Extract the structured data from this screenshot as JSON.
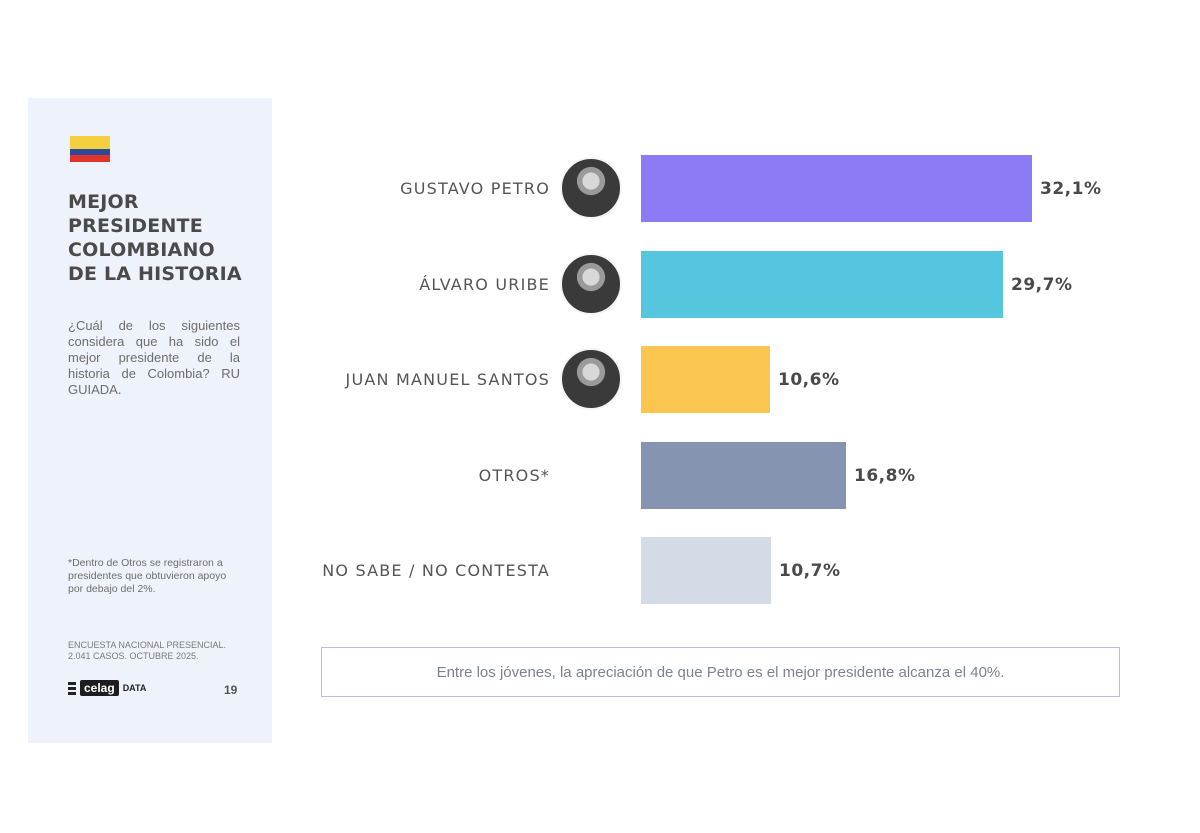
{
  "sidebar": {
    "title_lines": [
      "MEJOR",
      "PRESIDENTE",
      "COLOMBIANO",
      "DE LA HISTORIA"
    ],
    "question": "¿Cuál de los siguientes considera que ha sido el mejor presidente de la historia de Colombia? RU GUIADA.",
    "footnote": "*Dentro de Otros se registraron a presidentes que obtuvieron apoyo por debajo del 2%.",
    "survey": "ENCUESTA NACIONAL PRESENCIAL. 2.041 CASOS. OCTUBRE 2025.",
    "brand": "celag",
    "brand_sub": "DATA",
    "page_number": "19"
  },
  "chart_data": {
    "type": "bar",
    "orientation": "horizontal",
    "categories": [
      "GUSTAVO PETRO",
      "ÁLVARO URIBE",
      "JUAN MANUEL SANTOS",
      "OTROS*",
      "NO SABE / NO CONTESTA"
    ],
    "values": [
      32.1,
      29.7,
      10.6,
      16.8,
      10.7
    ],
    "value_labels": [
      "32,1%",
      "29,7%",
      "10,6%",
      "16,8%",
      "10,7%"
    ],
    "colors": [
      "#8b7cf6",
      "#56c6df",
      "#fac650",
      "#8595b1",
      "#d5dbe6"
    ],
    "avatars": [
      "person-portrait",
      "person-portrait",
      "person-portrait",
      null,
      null
    ],
    "unit": "%",
    "grid": false
  },
  "note": "Entre los jóvenes, la apreciación de que Petro es el mejor presidente alcanza el 40%."
}
